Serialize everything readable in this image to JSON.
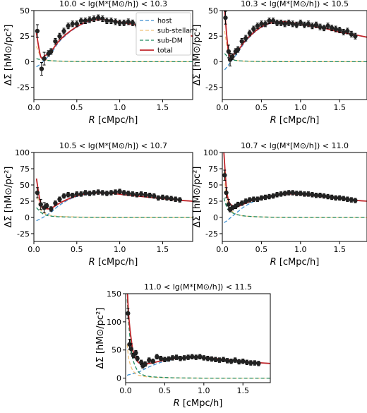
{
  "figure": {
    "xlabel_prefix": "R",
    "xlabel_suffix": " [cMpc/h]",
    "ylabel": "ΔΣ [hM⊙/pc²]"
  },
  "legend": [
    {
      "label": "host",
      "color": "#3b8ed0",
      "style": "dashed"
    },
    {
      "label": "sub-stellar",
      "color": "#f0c27a",
      "style": "dashed"
    },
    {
      "label": "sub-DM",
      "color": "#1f8a5f",
      "style": "dashed"
    },
    {
      "label": "total",
      "color": "#c0262b",
      "style": "solid"
    }
  ],
  "chart_data": [
    {
      "type": "line",
      "title": "10.0 < lg(M*[M⊙/h]) < 10.3",
      "xlabel": "R [cMpc/h]",
      "ylabel": "ΔΣ [hM⊙/pc²]",
      "xlim": [
        0.0,
        1.85
      ],
      "ylim": [
        -37,
        50
      ],
      "xticks": [
        0.0,
        0.5,
        1.0,
        1.5
      ],
      "yticks": [
        -25,
        0,
        25,
        50
      ],
      "legend_position": "top-right",
      "x": [
        0.03,
        0.08,
        0.13,
        0.2,
        0.3,
        0.45,
        0.6,
        0.75,
        0.9,
        1.05,
        1.2,
        1.35,
        1.5,
        1.65,
        1.85
      ],
      "series": [
        {
          "name": "host",
          "values": [
            -5,
            -2,
            2,
            8,
            20,
            31,
            38,
            41,
            40,
            38,
            36,
            33,
            31,
            28,
            25
          ]
        },
        {
          "name": "sub-stellar",
          "values": [
            15,
            5,
            2,
            1,
            0.5,
            0.3,
            0.2,
            0.1,
            0,
            0,
            0,
            0,
            0,
            0,
            0
          ]
        },
        {
          "name": "sub-DM",
          "values": [
            3,
            2,
            1.5,
            1,
            0.6,
            0.3,
            0.2,
            0.1,
            0,
            0,
            0,
            0,
            0,
            0,
            0
          ]
        },
        {
          "name": "total",
          "values": [
            28,
            5,
            6,
            10,
            21,
            31.5,
            38.5,
            41.2,
            40.2,
            38,
            36,
            33,
            31,
            28,
            25
          ]
        }
      ],
      "points": [
        [
          0.04,
          30
        ],
        [
          0.09,
          -7
        ],
        [
          0.12,
          3
        ],
        [
          0.17,
          8
        ],
        [
          0.2,
          10
        ],
        [
          0.25,
          20
        ],
        [
          0.3,
          25
        ],
        [
          0.35,
          30
        ],
        [
          0.4,
          35
        ],
        [
          0.45,
          37
        ],
        [
          0.5,
          37
        ],
        [
          0.55,
          40
        ],
        [
          0.6,
          40
        ],
        [
          0.65,
          41
        ],
        [
          0.7,
          42
        ],
        [
          0.75,
          43
        ],
        [
          0.8,
          42
        ],
        [
          0.85,
          40
        ],
        [
          0.9,
          40
        ],
        [
          0.95,
          39
        ],
        [
          1.0,
          38
        ],
        [
          1.05,
          38
        ],
        [
          1.1,
          39
        ],
        [
          1.15,
          38
        ],
        [
          1.2,
          36
        ],
        [
          1.25,
          37
        ],
        [
          1.3,
          35
        ],
        [
          1.35,
          35
        ],
        [
          1.4,
          36
        ],
        [
          1.45,
          34
        ],
        [
          1.5,
          35
        ],
        [
          1.55,
          32
        ],
        [
          1.6,
          31
        ],
        [
          1.65,
          30
        ],
        [
          1.7,
          30
        ]
      ]
    },
    {
      "type": "line",
      "title": "10.3 < lg(M*[M⊙/h]) < 10.5",
      "xlabel": "R [cMpc/h]",
      "ylabel": "ΔΣ [hM⊙/pc²]",
      "xlim": [
        0.0,
        1.85
      ],
      "ylim": [
        -37,
        50
      ],
      "xticks": [
        0.0,
        0.5,
        1.0,
        1.5
      ],
      "yticks": [
        -25,
        0,
        25,
        50
      ],
      "x": [
        0.03,
        0.08,
        0.13,
        0.2,
        0.3,
        0.45,
        0.6,
        0.75,
        0.9,
        1.05,
        1.2,
        1.35,
        1.5,
        1.65,
        1.85
      ],
      "series": [
        {
          "name": "host",
          "values": [
            -8,
            -3,
            2,
            9,
            20,
            31,
            37,
            39,
            38,
            36,
            34,
            32,
            29,
            27,
            24
          ]
        },
        {
          "name": "sub-stellar",
          "values": [
            30,
            8,
            3,
            1,
            0.5,
            0.3,
            0.2,
            0.1,
            0,
            0,
            0,
            0,
            0,
            0,
            0
          ]
        },
        {
          "name": "sub-DM",
          "values": [
            8,
            4,
            2,
            1,
            0.6,
            0.3,
            0.2,
            0.1,
            0,
            0,
            0,
            0,
            0,
            0,
            0
          ]
        },
        {
          "name": "total",
          "values": [
            50,
            9,
            7,
            11,
            21,
            31.5,
            37.4,
            39.2,
            38,
            36,
            34,
            32,
            29,
            27,
            24
          ]
        }
      ],
      "points": [
        [
          0.04,
          43
        ],
        [
          0.08,
          10
        ],
        [
          0.1,
          2
        ],
        [
          0.13,
          5
        ],
        [
          0.17,
          10
        ],
        [
          0.2,
          12
        ],
        [
          0.25,
          20
        ],
        [
          0.3,
          23
        ],
        [
          0.35,
          28
        ],
        [
          0.4,
          32
        ],
        [
          0.45,
          35
        ],
        [
          0.5,
          37
        ],
        [
          0.55,
          37
        ],
        [
          0.6,
          40
        ],
        [
          0.65,
          40
        ],
        [
          0.7,
          38
        ],
        [
          0.75,
          38
        ],
        [
          0.8,
          37
        ],
        [
          0.85,
          38
        ],
        [
          0.9,
          37
        ],
        [
          0.95,
          36
        ],
        [
          1.0,
          38
        ],
        [
          1.05,
          36
        ],
        [
          1.1,
          37
        ],
        [
          1.15,
          35
        ],
        [
          1.2,
          36
        ],
        [
          1.25,
          34
        ],
        [
          1.3,
          33
        ],
        [
          1.35,
          35
        ],
        [
          1.4,
          33
        ],
        [
          1.45,
          32
        ],
        [
          1.5,
          31
        ],
        [
          1.55,
          29
        ],
        [
          1.6,
          30
        ],
        [
          1.65,
          27
        ],
        [
          1.7,
          25
        ]
      ]
    },
    {
      "type": "line",
      "title": "10.5 < lg(M*[M⊙/h]) < 10.7",
      "xlabel": "R [cMpc/h]",
      "ylabel": "ΔΣ [hM⊙/pc²]",
      "xlim": [
        0.0,
        1.85
      ],
      "ylim": [
        -37,
        100
      ],
      "xticks": [
        0.0,
        0.5,
        1.0,
        1.5
      ],
      "yticks": [
        -25,
        0,
        25,
        50,
        75,
        100
      ],
      "x": [
        0.03,
        0.08,
        0.13,
        0.2,
        0.3,
        0.45,
        0.6,
        0.75,
        0.9,
        1.05,
        1.2,
        1.35,
        1.5,
        1.65,
        1.85
      ],
      "series": [
        {
          "name": "host",
          "values": [
            -5,
            -2,
            2,
            8,
            19,
            30,
            35,
            37,
            37,
            35,
            33,
            31,
            29,
            27,
            25
          ]
        },
        {
          "name": "sub-stellar",
          "values": [
            40,
            12,
            6,
            3,
            1.5,
            0.8,
            0.4,
            0.2,
            0.1,
            0,
            0,
            0,
            0,
            0,
            0
          ]
        },
        {
          "name": "sub-DM",
          "values": [
            15,
            8,
            4,
            2,
            1,
            0.5,
            0.3,
            0.1,
            0,
            0,
            0,
            0,
            0,
            0,
            0
          ]
        },
        {
          "name": "total",
          "values": [
            60,
            20,
            14,
            14,
            22,
            31,
            36,
            37.5,
            37,
            35,
            33,
            31,
            29,
            27,
            25
          ]
        }
      ],
      "points": [
        [
          0.04,
          38
        ],
        [
          0.08,
          20
        ],
        [
          0.12,
          15
        ],
        [
          0.15,
          18
        ],
        [
          0.2,
          13
        ],
        [
          0.25,
          22
        ],
        [
          0.3,
          28
        ],
        [
          0.35,
          33
        ],
        [
          0.4,
          35
        ],
        [
          0.45,
          34
        ],
        [
          0.5,
          36
        ],
        [
          0.55,
          36
        ],
        [
          0.6,
          38
        ],
        [
          0.65,
          37
        ],
        [
          0.7,
          38
        ],
        [
          0.75,
          39
        ],
        [
          0.8,
          38
        ],
        [
          0.85,
          37
        ],
        [
          0.9,
          38
        ],
        [
          0.95,
          39
        ],
        [
          1.0,
          40
        ],
        [
          1.05,
          38
        ],
        [
          1.1,
          37
        ],
        [
          1.15,
          36
        ],
        [
          1.2,
          35
        ],
        [
          1.25,
          36
        ],
        [
          1.3,
          35
        ],
        [
          1.35,
          34
        ],
        [
          1.4,
          33
        ],
        [
          1.45,
          30
        ],
        [
          1.5,
          31
        ],
        [
          1.55,
          30
        ],
        [
          1.6,
          29
        ],
        [
          1.65,
          28
        ],
        [
          1.7,
          27
        ]
      ]
    },
    {
      "type": "line",
      "title": "10.7 < lg(M*[M⊙/h]) < 11.0",
      "xlabel": "R [cMpc/h]",
      "ylabel": "ΔΣ [hM⊙/pc²]",
      "xlim": [
        0.0,
        1.85
      ],
      "ylim": [
        -37,
        100
      ],
      "xticks": [
        0.0,
        0.5,
        1.0,
        1.5
      ],
      "yticks": [
        -25,
        0,
        25,
        50,
        75,
        100
      ],
      "x": [
        0.02,
        0.05,
        0.08,
        0.13,
        0.2,
        0.3,
        0.45,
        0.6,
        0.75,
        0.9,
        1.05,
        1.2,
        1.35,
        1.5,
        1.65,
        1.85
      ],
      "series": [
        {
          "name": "host",
          "values": [
            -8,
            -6,
            -3,
            2,
            9,
            18,
            27,
            32,
            35,
            36,
            35,
            33,
            31,
            29,
            27,
            25
          ]
        },
        {
          "name": "sub-stellar",
          "values": [
            70,
            35,
            18,
            9,
            4,
            2,
            1,
            0.5,
            0.2,
            0.1,
            0,
            0,
            0,
            0,
            0,
            0
          ]
        },
        {
          "name": "sub-DM",
          "values": [
            30,
            18,
            12,
            7,
            4,
            2,
            1,
            0.4,
            0.2,
            0.1,
            0,
            0,
            0,
            0,
            0,
            0
          ]
        },
        {
          "name": "total",
          "values": [
            100,
            48,
            26,
            18,
            17,
            22,
            29,
            33,
            35.4,
            36.2,
            35,
            33,
            31,
            29,
            27,
            25
          ]
        }
      ],
      "points": [
        [
          0.03,
          65
        ],
        [
          0.05,
          38
        ],
        [
          0.08,
          20
        ],
        [
          0.1,
          12
        ],
        [
          0.13,
          15
        ],
        [
          0.17,
          17
        ],
        [
          0.2,
          20
        ],
        [
          0.25,
          22
        ],
        [
          0.3,
          25
        ],
        [
          0.35,
          27
        ],
        [
          0.4,
          28
        ],
        [
          0.45,
          28
        ],
        [
          0.5,
          30
        ],
        [
          0.55,
          31
        ],
        [
          0.6,
          32
        ],
        [
          0.65,
          33
        ],
        [
          0.7,
          35
        ],
        [
          0.75,
          36
        ],
        [
          0.8,
          37
        ],
        [
          0.85,
          38
        ],
        [
          0.9,
          38
        ],
        [
          0.95,
          37
        ],
        [
          1.0,
          37
        ],
        [
          1.05,
          36
        ],
        [
          1.1,
          36
        ],
        [
          1.15,
          35
        ],
        [
          1.2,
          34
        ],
        [
          1.25,
          34
        ],
        [
          1.3,
          33
        ],
        [
          1.35,
          32
        ],
        [
          1.4,
          31
        ],
        [
          1.45,
          30
        ],
        [
          1.5,
          30
        ],
        [
          1.55,
          29
        ],
        [
          1.6,
          28
        ],
        [
          1.65,
          27
        ],
        [
          1.7,
          26
        ]
      ]
    },
    {
      "type": "line",
      "title": "11.0 < lg(M*[M⊙/h]) < 11.5",
      "xlabel": "R [cMpc/h]",
      "ylabel": "ΔΣ [hM⊙/pc²]",
      "xlim": [
        0.0,
        1.85
      ],
      "ylim": [
        -8,
        150
      ],
      "xticks": [
        0.0,
        0.5,
        1.0,
        1.5
      ],
      "yticks": [
        0,
        50,
        100,
        150
      ],
      "x": [
        0.02,
        0.04,
        0.07,
        0.1,
        0.15,
        0.2,
        0.3,
        0.45,
        0.6,
        0.75,
        0.9,
        1.05,
        1.2,
        1.35,
        1.5,
        1.65,
        1.85
      ],
      "series": [
        {
          "name": "host",
          "values": [
            5,
            6,
            7,
            8,
            10,
            13,
            20,
            28,
            33,
            36,
            37,
            36,
            34,
            32,
            30,
            28,
            26
          ]
        },
        {
          "name": "sub-stellar",
          "values": [
            60,
            35,
            20,
            12,
            6,
            4,
            2,
            1,
            0.5,
            0.2,
            0.1,
            0,
            0,
            0,
            0,
            0,
            0
          ]
        },
        {
          "name": "sub-DM",
          "values": [
            140,
            95,
            55,
            30,
            14,
            7,
            3,
            1.5,
            0.6,
            0.3,
            0.1,
            0,
            0,
            0,
            0,
            0,
            0
          ]
        },
        {
          "name": "total",
          "values": [
            160,
            110,
            70,
            45,
            30,
            26,
            26,
            30.5,
            34,
            36.5,
            37.2,
            36,
            34,
            32,
            30,
            28,
            26
          ]
        }
      ],
      "points": [
        [
          0.03,
          115
        ],
        [
          0.05,
          60
        ],
        [
          0.07,
          52
        ],
        [
          0.1,
          40
        ],
        [
          0.13,
          45
        ],
        [
          0.15,
          35
        ],
        [
          0.2,
          28
        ],
        [
          0.22,
          22
        ],
        [
          0.25,
          25
        ],
        [
          0.3,
          32
        ],
        [
          0.35,
          30
        ],
        [
          0.4,
          38
        ],
        [
          0.45,
          35
        ],
        [
          0.5,
          33
        ],
        [
          0.55,
          34
        ],
        [
          0.6,
          36
        ],
        [
          0.65,
          37
        ],
        [
          0.7,
          35
        ],
        [
          0.75,
          36
        ],
        [
          0.8,
          37
        ],
        [
          0.85,
          38
        ],
        [
          0.9,
          37
        ],
        [
          0.95,
          38
        ],
        [
          1.0,
          36
        ],
        [
          1.05,
          35
        ],
        [
          1.1,
          34
        ],
        [
          1.15,
          33
        ],
        [
          1.2,
          32
        ],
        [
          1.25,
          33
        ],
        [
          1.3,
          31
        ],
        [
          1.35,
          30
        ],
        [
          1.4,
          32
        ],
        [
          1.45,
          29
        ],
        [
          1.5,
          30
        ],
        [
          1.55,
          28
        ],
        [
          1.6,
          27
        ],
        [
          1.65,
          27
        ],
        [
          1.7,
          26
        ]
      ]
    }
  ]
}
